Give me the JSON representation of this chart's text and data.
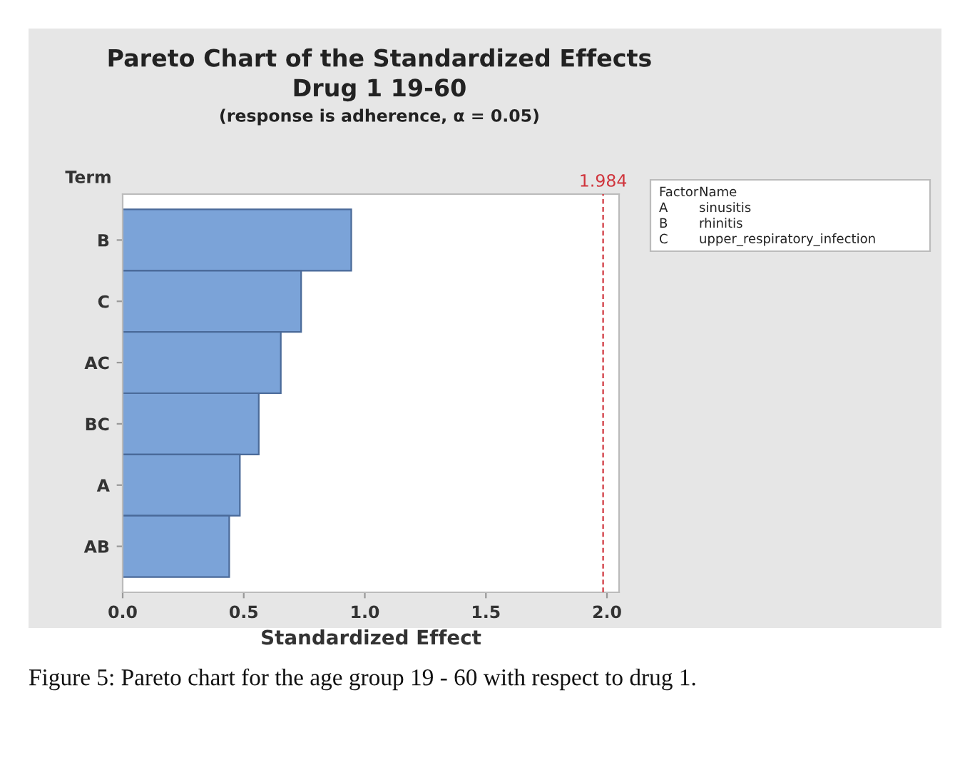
{
  "chart_data": {
    "type": "bar",
    "orientation": "horizontal",
    "title": "Pareto Chart of the Standardized Effects",
    "subtitle": "Drug 1 19-60",
    "xlabel": "Standardized Effect",
    "ylabel": "Term",
    "categories": [
      "B",
      "C",
      "AC",
      "BC",
      "A",
      "AB"
    ],
    "values": [
      0.944,
      0.737,
      0.653,
      0.562,
      0.484,
      0.44
    ],
    "color": "#7ba3d8",
    "xlim": [
      0,
      2.05
    ],
    "xticks": [
      {
        "value": 0,
        "label": "0.0"
      },
      {
        "value": 0.5,
        "label": "0.5"
      },
      {
        "value": 1,
        "label": "1.0"
      },
      {
        "value": 1.5,
        "label": "1.5"
      },
      {
        "value": 2,
        "label": "2.0"
      }
    ],
    "ref_lines": [
      {
        "axis": "x",
        "value": 1.984,
        "label": "1.984",
        "color": "#d0343c",
        "line_style": "dashed"
      }
    ],
    "grid": false,
    "legend": false,
    "annotations": [
      "Factor",
      "Name",
      "A",
      "sinusitis",
      "B",
      "rhinitis",
      "C",
      "upper_respiratory_infection",
      "(response is adherence, α = 0.05)",
      "Figure 5: Pareto chart for the age group 19 - 60 with respect to drug 1."
    ]
  }
}
